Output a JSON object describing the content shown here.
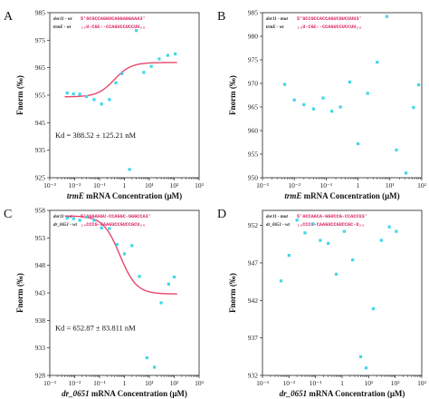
{
  "chart_data": [
    {
      "panel": "A",
      "type": "scatter",
      "xscale": "log",
      "xlim": [
        0.001,
        1000
      ],
      "ylim": [
        925,
        985
      ],
      "yticks": [
        925,
        935,
        945,
        955,
        965,
        975,
        985
      ],
      "xticks": [
        "10⁻³",
        "10⁻²",
        "10⁻¹",
        "1",
        "10¹",
        "10²",
        "10³"
      ],
      "ylabel": "Fnorm (‰)",
      "xlabel_italic": "trmE",
      "xlabel_rest": " mRNA Concentration (μM)",
      "seq_lines": [
        {
          "name": "dor11 - wt",
          "seq": "5'GCGCCAGGUCAGGAGGAAA3'"
        },
        {
          "name": "trmE - wt",
          "seq": "₃₀U-CGC--CCAGUCCUCCUU₂₀"
        }
      ],
      "kd": "Kd = 388.52 ± 125.21 nM",
      "points": [
        [
          0.005,
          955.8
        ],
        [
          0.009,
          955.5
        ],
        [
          0.016,
          955.4
        ],
        [
          0.03,
          954.5
        ],
        [
          0.06,
          953.4
        ],
        [
          0.12,
          951.8
        ],
        [
          0.25,
          953.4
        ],
        [
          0.45,
          959.5
        ],
        [
          0.8,
          962.8
        ],
        [
          1.6,
          928.0
        ],
        [
          3,
          978.5
        ],
        [
          6,
          963.3
        ],
        [
          12,
          965.5
        ],
        [
          25,
          968.2
        ],
        [
          55,
          969.5
        ],
        [
          110,
          970.0
        ]
      ],
      "fit": {
        "model": "sigmoid",
        "bottom": 954.4,
        "top": 966.9,
        "ec50": 0.39
      }
    },
    {
      "panel": "B",
      "type": "scatter",
      "xscale": "log",
      "xlim": [
        0.001,
        100
      ],
      "ylim": [
        950,
        985
      ],
      "yticks": [
        950,
        955,
        960,
        965,
        970,
        975,
        980,
        985
      ],
      "xticks": [
        "10⁻³",
        "10⁻²",
        "10⁻¹",
        "1",
        "10¹",
        "10²"
      ],
      "ylabel": "Fnorm (‰)",
      "xlabel_italic": "trmE",
      "xlabel_rest": " mRNA Concentration (μM)",
      "seq_lines": [
        {
          "name": "dor11 - mut",
          "seq": "5'GCCGCCACCAGUCGUCUUU3'"
        },
        {
          "name": "trmE - wt",
          "seq": "₃₀U-CGC--CCAGUCCUCCUU₂₀"
        }
      ],
      "kd": "",
      "points": [
        [
          0.005,
          969.8
        ],
        [
          0.01,
          966.5
        ],
        [
          0.02,
          965.5
        ],
        [
          0.04,
          964.6
        ],
        [
          0.08,
          966.9
        ],
        [
          0.15,
          964.1
        ],
        [
          0.28,
          965.0
        ],
        [
          0.55,
          970.3
        ],
        [
          1.0,
          957.2
        ],
        [
          2.0,
          967.9
        ],
        [
          4.0,
          974.5
        ],
        [
          8.0,
          984.2
        ],
        [
          16,
          955.9
        ],
        [
          32,
          951.0
        ],
        [
          55,
          964.9
        ],
        [
          80,
          969.7
        ]
      ],
      "fit": null
    },
    {
      "panel": "C",
      "type": "scatter",
      "xscale": "log",
      "xlim": [
        0.001,
        1000
      ],
      "ylim": [
        928,
        958
      ],
      "yticks": [
        928,
        933,
        938,
        943,
        948,
        953,
        958
      ],
      "xticks": [
        "10⁻³",
        "10⁻²",
        "10⁻¹",
        "1",
        "10¹",
        "10²",
        "10³"
      ],
      "ylabel": "Fnorm (‰)",
      "xlabel_italic": "dr_0651",
      "xlabel_rest": " mRNA Concentration (μM)",
      "seq_lines": [
        {
          "name": "dor11 - wt",
          "seq": "5'AGGAAGU-CCAGGC-GGGCCA3'"
        },
        {
          "name": "dr_0651 - wt",
          "seq": "₃₀CCCG-CAAGUCCGUCCGCU₂₀"
        }
      ],
      "kd": "Kd = 652.87 ± 83.811 nM",
      "points": [
        [
          0.005,
          956.6
        ],
        [
          0.009,
          956.5
        ],
        [
          0.016,
          956.2
        ],
        [
          0.03,
          956.8
        ],
        [
          0.06,
          956.2
        ],
        [
          0.12,
          954.8
        ],
        [
          0.25,
          954.7
        ],
        [
          0.5,
          951.8
        ],
        [
          1.0,
          950.1
        ],
        [
          2.0,
          951.6
        ],
        [
          4.0,
          946.0
        ],
        [
          8.0,
          931.2
        ],
        [
          16,
          929.5
        ],
        [
          30,
          941.2
        ],
        [
          60,
          944.6
        ],
        [
          100,
          945.9
        ]
      ],
      "fit": {
        "model": "sigmoid",
        "top": 957.0,
        "bottom": 942.8,
        "ec50": 0.65
      }
    },
    {
      "panel": "D",
      "type": "scatter",
      "xscale": "log",
      "xlim": [
        0.001,
        1000
      ],
      "ylim": [
        932,
        954
      ],
      "yticks": [
        932,
        937,
        942,
        947,
        952
      ],
      "xticks": [
        "10⁻³",
        "10⁻²",
        "10⁻¹",
        "1",
        "10¹",
        "10²",
        "10³"
      ],
      "ylabel": "Fnorm (‰)",
      "xlabel_italic": "dr_0651",
      "xlabel_rest": " mRNA Concentration (μM)",
      "seq_lines": [
        {
          "name": "dor11 - mut",
          "seq": "5'ACCAACA-GGUCCG-CCACCU3'"
        },
        {
          "name": "dr_0651 - wt",
          "seq": "₃₀CCCG-CAAGUCCGUCCGC-U₂₀"
        }
      ],
      "kd": "",
      "points": [
        [
          0.005,
          944.6
        ],
        [
          0.01,
          948.0
        ],
        [
          0.02,
          952.7
        ],
        [
          0.04,
          951.0
        ],
        [
          0.08,
          952.2
        ],
        [
          0.15,
          950.0
        ],
        [
          0.3,
          949.6
        ],
        [
          0.6,
          945.5
        ],
        [
          1.2,
          951.2
        ],
        [
          2.5,
          947.4
        ],
        [
          5,
          934.5
        ],
        [
          8,
          933.0
        ],
        [
          15,
          940.9
        ],
        [
          30,
          950.0
        ],
        [
          60,
          951.8
        ],
        [
          110,
          951.2
        ]
      ],
      "fit": null
    }
  ],
  "colors": {
    "points": "#3fd7e8",
    "fit": "#e8476a",
    "seq": "#d81b60"
  }
}
